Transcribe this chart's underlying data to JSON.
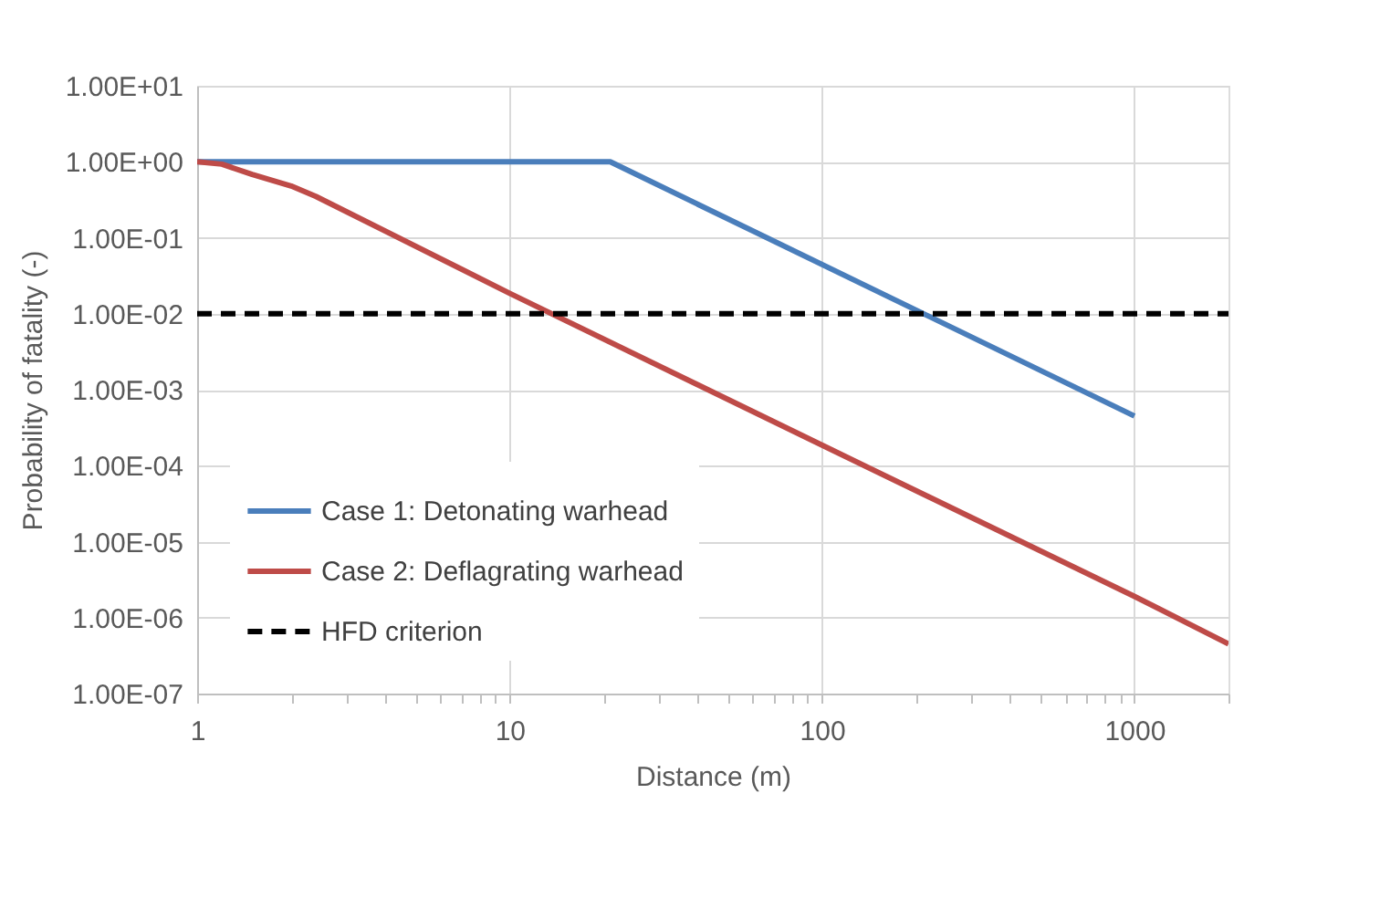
{
  "chart_data": {
    "type": "line",
    "xlabel": "Distance (m)",
    "ylabel": "Probability of fatality (-)",
    "log": "xy",
    "grid": true,
    "legend": "bottom left",
    "line_style": "solid",
    "marker": "none",
    "xlim": [
      1,
      2000
    ],
    "xticks": [
      1,
      {
        "value": 2,
        "label": null
      },
      {
        "value": 3,
        "label": null
      },
      {
        "value": 4,
        "label": null
      },
      {
        "value": 5,
        "label": null
      },
      {
        "value": 6,
        "label": null
      },
      {
        "value": 7,
        "label": null
      },
      {
        "value": 8,
        "label": null
      },
      {
        "value": 9,
        "label": null
      },
      10,
      {
        "value": 20,
        "label": null
      },
      {
        "value": 30,
        "label": null
      },
      {
        "value": 40,
        "label": null
      },
      {
        "value": 50,
        "label": null
      },
      {
        "value": 60,
        "label": null
      },
      {
        "value": 70,
        "label": null
      },
      {
        "value": 80,
        "label": null
      },
      {
        "value": 90,
        "label": null
      },
      100,
      {
        "value": 200,
        "label": null
      },
      {
        "value": 300,
        "label": null
      },
      {
        "value": 400,
        "label": null
      },
      {
        "value": 500,
        "label": null
      },
      {
        "value": 600,
        "label": null
      },
      {
        "value": 700,
        "label": null
      },
      {
        "value": 800,
        "label": null
      },
      {
        "value": 900,
        "label": null
      },
      1000,
      {
        "value": 2000,
        "label": null
      }
    ],
    "ylim": [
      1e-07,
      10
    ],
    "yticks": [
      {
        "value": 1e-07,
        "label": "1.00E-07"
      },
      {
        "value": 1e-06,
        "label": "1.00E-06"
      },
      {
        "value": 1e-05,
        "label": "1.00E-05"
      },
      {
        "value": 0.0001,
        "label": "1.00E-04"
      },
      {
        "value": 0.001,
        "label": "1.00E-03"
      },
      {
        "value": 0.01,
        "label": "1.00E-02"
      },
      {
        "value": 0.1,
        "label": "1.00E-01"
      },
      {
        "value": 1,
        "label": "1.00E+00"
      },
      {
        "value": 10,
        "label": "1.00E+01"
      }
    ],
    "series": [
      {
        "name": "Case 1: Detonating warhead",
        "color": "#4a7ebb",
        "x": [
          1,
          21,
          1000
        ],
        "values": [
          1,
          1,
          0.00045
        ]
      },
      {
        "name": "Case 2: Deflagrating warhead",
        "color": "#be4b48",
        "x": [
          1,
          1.2,
          1.5,
          2,
          2.4,
          10,
          100,
          1000,
          2000
        ],
        "values": [
          1,
          0.93,
          0.68,
          0.48,
          0.35,
          0.0186,
          0.000186,
          1.9e-06,
          4.5e-07
        ]
      }
    ],
    "ref_lines": [
      {
        "axis": "y",
        "value": 0.01,
        "label": "HFD criterion",
        "color": "#000000",
        "line_style": "dashed"
      }
    ]
  }
}
